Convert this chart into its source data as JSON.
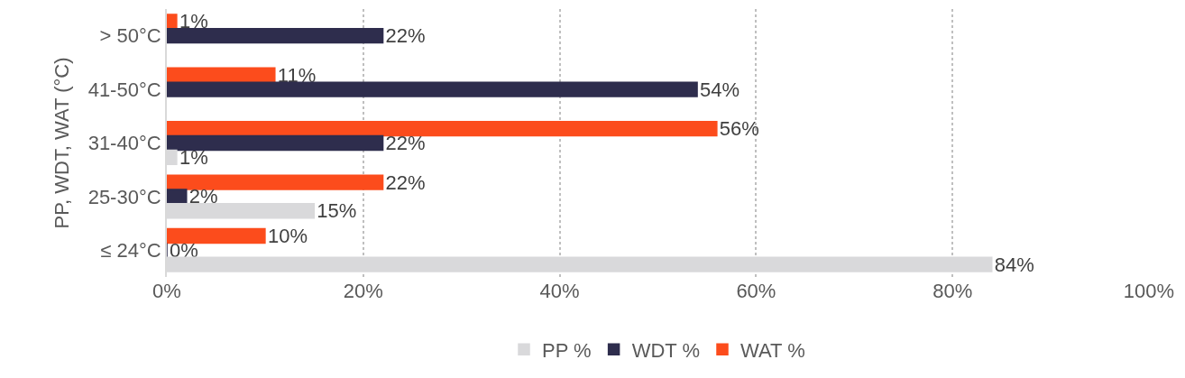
{
  "chart_data": {
    "type": "bar",
    "orientation": "horizontal",
    "ylabel": "PP, WDT, WAT (°C)",
    "categories": [
      "> 50°C",
      "41-50°C",
      "31-40°C",
      "25-30°C",
      "≤ 24°C"
    ],
    "series": [
      {
        "name": "WAT %",
        "color": "#fc4c1c",
        "values": [
          1,
          11,
          56,
          22,
          10
        ],
        "value_labels": [
          "1%",
          "11%",
          "56%",
          "22%",
          "10%"
        ]
      },
      {
        "name": "WDT %",
        "color": "#2e2d4d",
        "values": [
          22,
          54,
          22,
          2,
          0
        ],
        "value_labels": [
          "22%",
          "54%",
          "22%",
          "2%",
          "0%"
        ]
      },
      {
        "name": "PP %",
        "color": "#d9d9db",
        "values": [
          null,
          null,
          1,
          15,
          84
        ],
        "value_labels": [
          null,
          null,
          "1%",
          "15%",
          "84%"
        ]
      }
    ],
    "xlim": [
      0,
      100
    ],
    "xticks": [
      {
        "value": 0,
        "label": "0%"
      },
      {
        "value": 20,
        "label": "20%"
      },
      {
        "value": 40,
        "label": "40%"
      },
      {
        "value": 60,
        "label": "60%"
      },
      {
        "value": 80,
        "label": "80%"
      },
      {
        "value": 100,
        "label": "100%"
      }
    ],
    "grid": "x",
    "legend": "bottom"
  }
}
